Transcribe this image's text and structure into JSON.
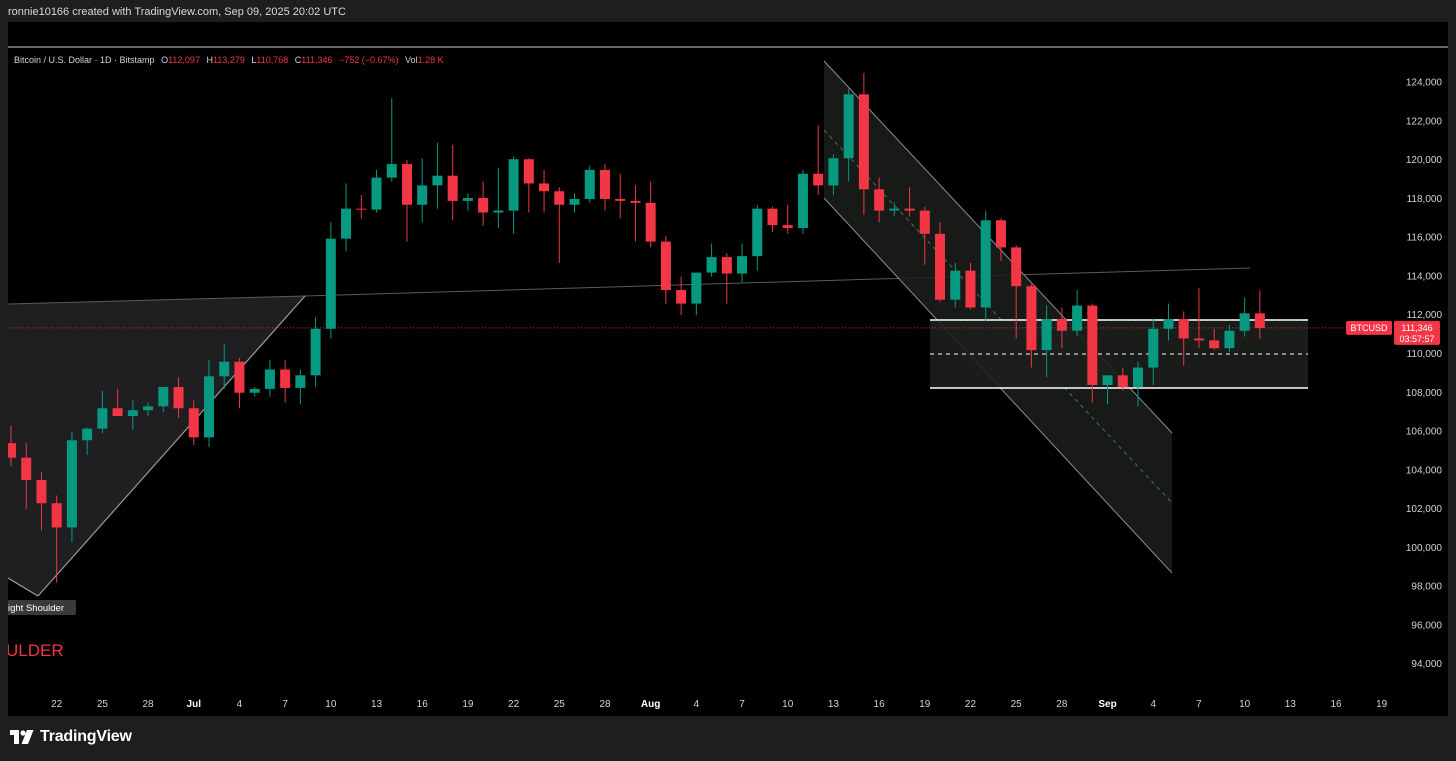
{
  "caption": "ronnie10166 created with TradingView.com, Sep 09, 2025 20:02 UTC",
  "header": {
    "symbol": "Bitcoin / U.S. Dollar · 1D · Bitstamp",
    "open_label": "O",
    "open": "112,097",
    "high_label": "H",
    "high": "113,279",
    "low_label": "L",
    "low": "110,768",
    "close_label": "C",
    "close": "111,346",
    "change": "−752 (−0.67%)",
    "vol_label": "Vol",
    "vol": "1.28 K"
  },
  "price_tag": {
    "symbol": "BTCUSD",
    "price": "111,346",
    "countdown": "03:57:57",
    "color": "#f23645"
  },
  "annotations": {
    "right_shoulder_label": "ight Shoulder",
    "shoulder_text": "ULDER"
  },
  "footer": {
    "brand": "TradingView"
  },
  "colors": {
    "up": "#089981",
    "down": "#f23645",
    "background": "#000000"
  },
  "chart_data": {
    "type": "candlestick",
    "title": "",
    "ylim": [
      93000,
      125500
    ],
    "yticks": [
      "124,000",
      "122,000",
      "120,000",
      "118,000",
      "116,000",
      "114,000",
      "112,000",
      "110,000",
      "108,000",
      "106,000",
      "104,000",
      "102,000",
      "100,000",
      "98,000",
      "96,000",
      "94,000"
    ],
    "xticks": [
      "22",
      "25",
      "28",
      "Jul",
      "4",
      "7",
      "10",
      "13",
      "16",
      "19",
      "22",
      "25",
      "28",
      "Aug",
      "4",
      "7",
      "10",
      "13",
      "16",
      "19",
      "22",
      "25",
      "28",
      "Sep",
      "4",
      "7",
      "10",
      "13",
      "16",
      "19"
    ],
    "candles": [
      {
        "date": "Jun 19",
        "open": 105400,
        "high": 106300,
        "low": 104200,
        "close": 104650
      },
      {
        "date": "Jun 20",
        "open": 104650,
        "high": 105400,
        "low": 102000,
        "close": 103500
      },
      {
        "date": "Jun 21",
        "open": 103500,
        "high": 103900,
        "low": 100900,
        "close": 102300
      },
      {
        "date": "Jun 22",
        "open": 102300,
        "high": 102700,
        "low": 98200,
        "close": 101050
      },
      {
        "date": "Jun 23",
        "open": 101050,
        "high": 106000,
        "low": 100300,
        "close": 105550
      },
      {
        "date": "Jun 24",
        "open": 105550,
        "high": 106200,
        "low": 104800,
        "close": 106150
      },
      {
        "date": "Jun 25",
        "open": 106150,
        "high": 108100,
        "low": 105900,
        "close": 107200
      },
      {
        "date": "Jun 26",
        "open": 107200,
        "high": 108200,
        "low": 106800,
        "close": 106800
      },
      {
        "date": "Jun 27",
        "open": 106800,
        "high": 107600,
        "low": 106100,
        "close": 107100
      },
      {
        "date": "Jun 28",
        "open": 107100,
        "high": 107500,
        "low": 106800,
        "close": 107300
      },
      {
        "date": "Jun 29",
        "open": 107300,
        "high": 108300,
        "low": 107000,
        "close": 108300
      },
      {
        "date": "Jun 30",
        "open": 108300,
        "high": 108800,
        "low": 106700,
        "close": 107200
      },
      {
        "date": "Jul 1",
        "open": 107200,
        "high": 107600,
        "low": 105300,
        "close": 105700
      },
      {
        "date": "Jul 2",
        "open": 105700,
        "high": 109700,
        "low": 105200,
        "close": 108850
      },
      {
        "date": "Jul 3",
        "open": 108850,
        "high": 110500,
        "low": 108200,
        "close": 109600
      },
      {
        "date": "Jul 4",
        "open": 109600,
        "high": 109800,
        "low": 107200,
        "close": 108000
      },
      {
        "date": "Jul 5",
        "open": 108000,
        "high": 108300,
        "low": 107800,
        "close": 108200
      },
      {
        "date": "Jul 6",
        "open": 108200,
        "high": 109700,
        "low": 107800,
        "close": 109200
      },
      {
        "date": "Jul 7",
        "open": 109200,
        "high": 109700,
        "low": 107500,
        "close": 108250
      },
      {
        "date": "Jul 8",
        "open": 108250,
        "high": 109200,
        "low": 107400,
        "close": 108900
      },
      {
        "date": "Jul 9",
        "open": 108900,
        "high": 111900,
        "low": 108300,
        "close": 111300
      },
      {
        "date": "Jul 10",
        "open": 111300,
        "high": 116800,
        "low": 110800,
        "close": 115950
      },
      {
        "date": "Jul 11",
        "open": 115950,
        "high": 118800,
        "low": 115300,
        "close": 117500
      },
      {
        "date": "Jul 12",
        "open": 117500,
        "high": 118200,
        "low": 117000,
        "close": 117450
      },
      {
        "date": "Jul 13",
        "open": 117450,
        "high": 119500,
        "low": 117300,
        "close": 119100
      },
      {
        "date": "Jul 14",
        "open": 119100,
        "high": 123200,
        "low": 118900,
        "close": 119800
      },
      {
        "date": "Jul 15",
        "open": 119800,
        "high": 120000,
        "low": 115800,
        "close": 117700
      },
      {
        "date": "Jul 16",
        "open": 117700,
        "high": 120100,
        "low": 116800,
        "close": 118700
      },
      {
        "date": "Jul 17",
        "open": 118700,
        "high": 120900,
        "low": 117500,
        "close": 119200
      },
      {
        "date": "Jul 18",
        "open": 119200,
        "high": 120800,
        "low": 116900,
        "close": 117900
      },
      {
        "date": "Jul 19",
        "open": 117900,
        "high": 118300,
        "low": 117400,
        "close": 118050
      },
      {
        "date": "Jul 20",
        "open": 118050,
        "high": 118900,
        "low": 116600,
        "close": 117300
      },
      {
        "date": "Jul 21",
        "open": 117300,
        "high": 119600,
        "low": 116500,
        "close": 117400
      },
      {
        "date": "Jul 22",
        "open": 117400,
        "high": 120200,
        "low": 116200,
        "close": 120050
      },
      {
        "date": "Jul 23",
        "open": 120050,
        "high": 120100,
        "low": 117300,
        "close": 118800
      },
      {
        "date": "Jul 24",
        "open": 118800,
        "high": 119500,
        "low": 117300,
        "close": 118400
      },
      {
        "date": "Jul 25",
        "open": 118400,
        "high": 118600,
        "low": 114700,
        "close": 117700
      },
      {
        "date": "Jul 26",
        "open": 117700,
        "high": 118300,
        "low": 117300,
        "close": 118000
      },
      {
        "date": "Jul 27",
        "open": 118000,
        "high": 119700,
        "low": 117800,
        "close": 119500
      },
      {
        "date": "Jul 28",
        "open": 119500,
        "high": 119800,
        "low": 117400,
        "close": 118000
      },
      {
        "date": "Jul 29",
        "open": 118000,
        "high": 119300,
        "low": 117000,
        "close": 117900
      },
      {
        "date": "Jul 30",
        "open": 117900,
        "high": 118700,
        "low": 115800,
        "close": 117800
      },
      {
        "date": "Jul 31",
        "open": 117800,
        "high": 118900,
        "low": 115500,
        "close": 115800
      },
      {
        "date": "Aug 1",
        "open": 115800,
        "high": 116100,
        "low": 112600,
        "close": 113300
      },
      {
        "date": "Aug 2",
        "open": 113300,
        "high": 114000,
        "low": 112000,
        "close": 112600
      },
      {
        "date": "Aug 3",
        "open": 112600,
        "high": 114200,
        "low": 112000,
        "close": 114200
      },
      {
        "date": "Aug 4",
        "open": 114200,
        "high": 115700,
        "low": 114000,
        "close": 115000
      },
      {
        "date": "Aug 5",
        "open": 115000,
        "high": 115200,
        "low": 112600,
        "close": 114150
      },
      {
        "date": "Aug 6",
        "open": 114150,
        "high": 115700,
        "low": 113700,
        "close": 115050
      },
      {
        "date": "Aug 7",
        "open": 115050,
        "high": 117700,
        "low": 114300,
        "close": 117500
      },
      {
        "date": "Aug 8",
        "open": 117500,
        "high": 117600,
        "low": 116300,
        "close": 116650
      },
      {
        "date": "Aug 9",
        "open": 116650,
        "high": 117700,
        "low": 116200,
        "close": 116500
      },
      {
        "date": "Aug 10",
        "open": 116500,
        "high": 119500,
        "low": 116200,
        "close": 119300
      },
      {
        "date": "Aug 11",
        "open": 119300,
        "high": 121800,
        "low": 118200,
        "close": 118700
      },
      {
        "date": "Aug 12",
        "open": 118700,
        "high": 120300,
        "low": 118200,
        "close": 120100
      },
      {
        "date": "Aug 13",
        "open": 120100,
        "high": 123700,
        "low": 118900,
        "close": 123400
      },
      {
        "date": "Aug 14",
        "open": 123400,
        "high": 124500,
        "low": 117200,
        "close": 118500
      },
      {
        "date": "Aug 15",
        "open": 118500,
        "high": 119100,
        "low": 116800,
        "close": 117400
      },
      {
        "date": "Aug 16",
        "open": 117400,
        "high": 117800,
        "low": 117100,
        "close": 117500
      },
      {
        "date": "Aug 17",
        "open": 117500,
        "high": 118600,
        "low": 117100,
        "close": 117400
      },
      {
        "date": "Aug 18",
        "open": 117400,
        "high": 117600,
        "low": 114600,
        "close": 116200
      },
      {
        "date": "Aug 19",
        "open": 116200,
        "high": 116800,
        "low": 112700,
        "close": 112800
      },
      {
        "date": "Aug 20",
        "open": 112800,
        "high": 114700,
        "low": 112400,
        "close": 114300
      },
      {
        "date": "Aug 21",
        "open": 114300,
        "high": 114700,
        "low": 112300,
        "close": 112400
      },
      {
        "date": "Aug 22",
        "open": 112400,
        "high": 117400,
        "low": 111700,
        "close": 116900
      },
      {
        "date": "Aug 23",
        "open": 116900,
        "high": 117000,
        "low": 114800,
        "close": 115500
      },
      {
        "date": "Aug 24",
        "open": 115500,
        "high": 115600,
        "low": 110800,
        "close": 113500
      },
      {
        "date": "Aug 25",
        "open": 113500,
        "high": 113600,
        "low": 109300,
        "close": 110200
      },
      {
        "date": "Aug 26",
        "open": 110200,
        "high": 112500,
        "low": 108800,
        "close": 111800
      },
      {
        "date": "Aug 27",
        "open": 111800,
        "high": 112400,
        "low": 110300,
        "close": 111200
      },
      {
        "date": "Aug 28",
        "open": 111200,
        "high": 113300,
        "low": 110900,
        "close": 112500
      },
      {
        "date": "Aug 29",
        "open": 112500,
        "high": 112600,
        "low": 107500,
        "close": 108400
      },
      {
        "date": "Aug 30",
        "open": 108400,
        "high": 108900,
        "low": 107400,
        "close": 108900
      },
      {
        "date": "Aug 31",
        "open": 108900,
        "high": 109300,
        "low": 108100,
        "close": 108300
      },
      {
        "date": "Sep 1",
        "open": 108300,
        "high": 109600,
        "low": 107300,
        "close": 109300
      },
      {
        "date": "Sep 2",
        "open": 109300,
        "high": 111800,
        "low": 108400,
        "close": 111300
      },
      {
        "date": "Sep 3",
        "open": 111300,
        "high": 112600,
        "low": 110700,
        "close": 111800
      },
      {
        "date": "Sep 4",
        "open": 111800,
        "high": 112200,
        "low": 109400,
        "close": 110800
      },
      {
        "date": "Sep 5",
        "open": 110800,
        "high": 113400,
        "low": 110300,
        "close": 110700
      },
      {
        "date": "Sep 6",
        "open": 110700,
        "high": 111300,
        "low": 110200,
        "close": 110300
      },
      {
        "date": "Sep 7",
        "open": 110300,
        "high": 111500,
        "low": 110100,
        "close": 111200
      },
      {
        "date": "Sep 8",
        "open": 111200,
        "high": 112900,
        "low": 110900,
        "close": 112100
      },
      {
        "date": "Sep 9",
        "open": 112097,
        "high": 113279,
        "low": 110768,
        "close": 111346
      }
    ]
  }
}
